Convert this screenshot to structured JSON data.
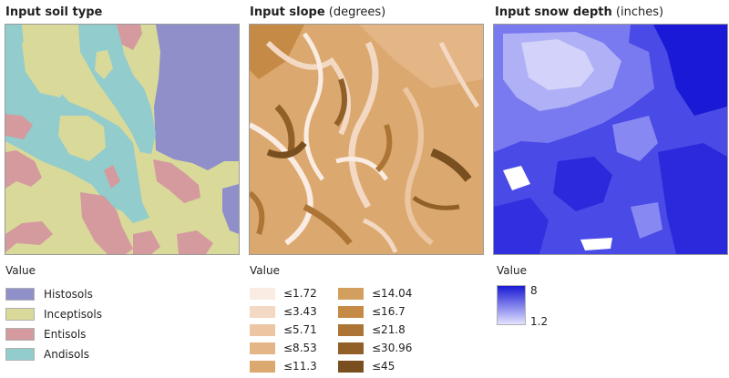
{
  "panels": {
    "soil": {
      "title": "Input soil type",
      "unit": ""
    },
    "slope": {
      "title": "Input slope",
      "unit": "(degrees)"
    },
    "snow": {
      "title": "Input snow depth",
      "unit": "(inches)"
    }
  },
  "soil_legend": {
    "title": "Value",
    "items": [
      {
        "label": "Histosols",
        "color": "#8f8fca"
      },
      {
        "label": "Inceptisols",
        "color": "#d9d99a"
      },
      {
        "label": "Entisols",
        "color": "#d49a9e"
      },
      {
        "label": "Andisols",
        "color": "#92cccc"
      }
    ]
  },
  "slope_legend": {
    "title": "Value",
    "items": [
      {
        "label": "≤1.72",
        "color": "#faece3"
      },
      {
        "label": "≤3.43",
        "color": "#f3d9c4"
      },
      {
        "label": "≤5.71",
        "color": "#ecc6a3"
      },
      {
        "label": "≤8.53",
        "color": "#e4b585"
      },
      {
        "label": "≤11.3",
        "color": "#dba96f"
      },
      {
        "label": "≤14.04",
        "color": "#d29f5f"
      },
      {
        "label": "≤16.7",
        "color": "#c58a45"
      },
      {
        "label": "≤21.8",
        "color": "#ad7535"
      },
      {
        "label": "≤30.96",
        "color": "#916029"
      },
      {
        "label": "≤45",
        "color": "#7a4f20"
      }
    ]
  },
  "snow_legend": {
    "title": "Value",
    "max": "8",
    "min": "1.2",
    "color_high": "#1a1ad6",
    "color_low": "#e2e2ff"
  }
}
